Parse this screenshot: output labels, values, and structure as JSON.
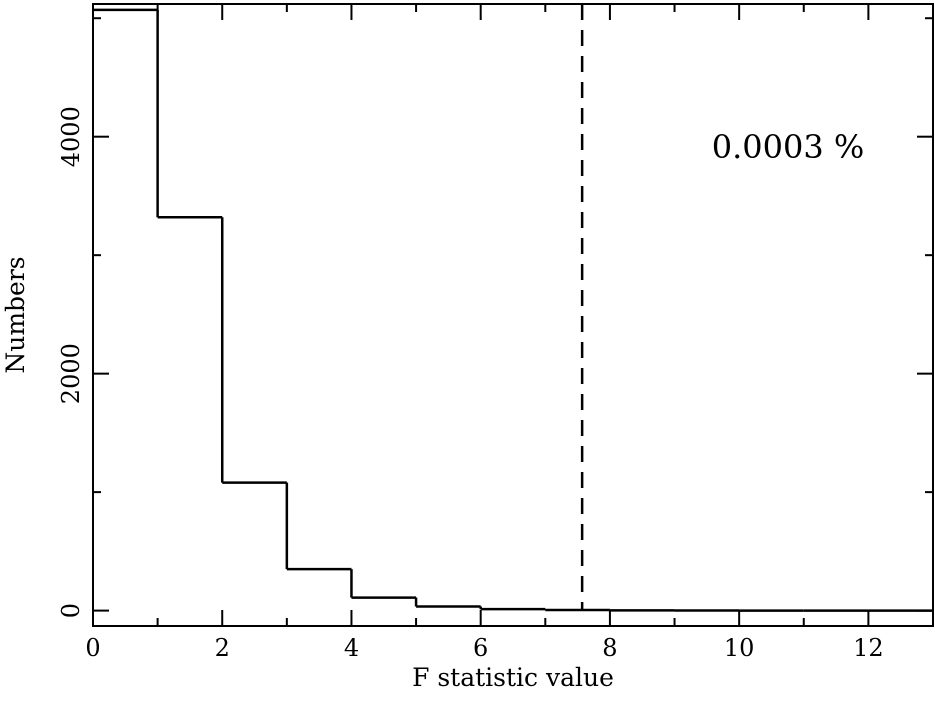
{
  "chart_data": {
    "type": "bar",
    "style": "step-histogram",
    "title": "",
    "xlabel": "F statistic value",
    "ylabel": "Numbers",
    "xlim": [
      0,
      13
    ],
    "ylim": [
      -130,
      5120
    ],
    "bin_width": 1,
    "bins": [
      {
        "x0": 0,
        "x1": 1,
        "value": 5070
      },
      {
        "x0": 1,
        "x1": 2,
        "value": 3320
      },
      {
        "x0": 2,
        "x1": 3,
        "value": 1080
      },
      {
        "x0": 3,
        "x1": 4,
        "value": 350
      },
      {
        "x0": 4,
        "x1": 5,
        "value": 110
      },
      {
        "x0": 5,
        "x1": 6,
        "value": 35
      },
      {
        "x0": 6,
        "x1": 7,
        "value": 12
      },
      {
        "x0": 7,
        "x1": 8,
        "value": 5
      },
      {
        "x0": 8,
        "x1": 9,
        "value": 2
      },
      {
        "x0": 9,
        "x1": 10,
        "value": 1
      },
      {
        "x0": 10,
        "x1": 11,
        "value": 0
      },
      {
        "x0": 11,
        "x1": 12,
        "value": 0
      },
      {
        "x0": 12,
        "x1": 13,
        "value": 0
      }
    ],
    "x_ticks_major": [
      0,
      2,
      4,
      6,
      8,
      10,
      12
    ],
    "x_tick_labels": [
      "0",
      "2",
      "4",
      "6",
      "8",
      "10",
      "12"
    ],
    "x_ticks_minor": [
      1,
      3,
      5,
      7,
      9,
      11,
      13
    ],
    "y_ticks_major": [
      0,
      2000,
      4000
    ],
    "y_tick_labels": [
      "0",
      "2000",
      "4000"
    ],
    "y_ticks_minor": [
      1000,
      3000,
      5000
    ],
    "reference_line": {
      "x": 7.57,
      "style": "dashed"
    },
    "annotation": "0.0003 %",
    "grid": false,
    "legend": "none"
  }
}
